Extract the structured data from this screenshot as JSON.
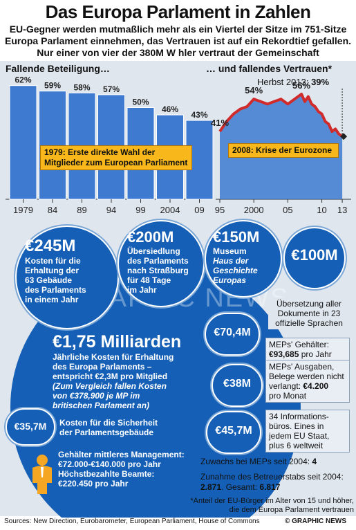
{
  "header": {
    "title": "Das Europa Parlament in Zahlen",
    "subtitle": "EU-Gegner werden mutmaßlich mehr als ein Viertel der Sitze im 751-Sitze Europa Parlament einnehmen, das Vertrauen ist auf ein Rekordtief gefallen. Nur einer von vier der 380M  W  hler vertraut der Gemeinschaft"
  },
  "chart_data": [
    {
      "type": "bar",
      "title": "Fallende Beteiligung…",
      "categories": [
        "1979",
        "84",
        "89",
        "94",
        "99",
        "2004",
        "09"
      ],
      "values": [
        62,
        59,
        58,
        57,
        50,
        46,
        43
      ],
      "value_labels": [
        "62%",
        "59%",
        "58%",
        "57%",
        "50%",
        "46%",
        "43%"
      ],
      "annotation": "1979: Erste direkte Wahl der Mitglieder zum European Parliament",
      "color": "#3d7ad0"
    },
    {
      "type": "line",
      "title": "… und fallendes Vertrauen*",
      "subtitle_label": "Herbst 2013:",
      "subtitle_value": "39%",
      "x_ticks": [
        "95",
        "2000",
        "05",
        "10",
        "13"
      ],
      "x": [
        1995,
        1996,
        1997,
        1998,
        1999,
        2000,
        2001,
        2002,
        2003,
        2004,
        2005,
        2006,
        2007,
        2007.5,
        2008,
        2008.5,
        2009,
        2009.5,
        2010,
        2010.5,
        2011,
        2011.5,
        2012,
        2012.5,
        2013
      ],
      "y": [
        41,
        45,
        48,
        50,
        51,
        54,
        53,
        52,
        53,
        54,
        52,
        54,
        56,
        53,
        55,
        52,
        51,
        49,
        48,
        45,
        44,
        41,
        42,
        40,
        39
      ],
      "value_labels": [
        {
          "x": 1995,
          "label": "41%"
        },
        {
          "x": 2000,
          "label": "54%"
        },
        {
          "x": 2007,
          "label": "56%"
        }
      ],
      "annotation": "2008: Krise der Eurozone",
      "color": "#d12a2a"
    }
  ],
  "circles": {
    "c245": {
      "value": "€245M",
      "text": [
        "Kosten für die",
        "Erhaltung der",
        "63 Gebäude",
        "des Parlaments",
        "in einem Jahr"
      ]
    },
    "c200": {
      "value": "€200M",
      "text": [
        "Übersiedlung",
        "des Parlaments",
        "nach Straßburg",
        "für 48 Tage",
        "im Jahr"
      ]
    },
    "c150": {
      "value": "€150M",
      "text_1": "Museum",
      "text_italic": [
        "Haus der",
        "Geschichte",
        "Europas"
      ]
    },
    "c100": {
      "value": "€100M",
      "text": [
        "Übersetzung aller",
        "Dokumente in 23",
        "offizielle Sprachen"
      ]
    },
    "c70": {
      "value": "€70,4M",
      "text_1": "MEPs' Gehälter:",
      "text_bold": "€93,685",
      "text_2": "pro Jahr"
    },
    "c38": {
      "value": "€38M",
      "text_1": "MEPs' Ausgaben,",
      "text_2": "Belege werden nicht",
      "text_3": "verlangt:",
      "text_bold": "€4.200",
      "text_4": "pro Monat"
    },
    "c45": {
      "value": "€45,7M",
      "text": [
        "34 Informations-",
        "büros. Eines in",
        "jedem EU Staat,",
        "plus 6 weltweit"
      ]
    },
    "c35": {
      "value": "€35,7M",
      "text": [
        "Kosten für die Sicherheit",
        "der Parlamentsgebäude"
      ]
    }
  },
  "main": {
    "value": "€1,75 Milliarden",
    "text": [
      "Jährliche Kosten für Erhaltung",
      "des Europa Parlaments –",
      "entspricht €2,3M pro Mitglied"
    ],
    "italic": [
      "(Zum Vergleich fallen Kosten",
      "von €378,900 je MP im",
      "britischen Parlament an)"
    ],
    "salary": [
      "Gehälter mittleres Management:",
      "€72.000-€140.000 pro Jahr",
      "Höchstbezahlte Beamte:",
      "€220.450 pro Jahr"
    ]
  },
  "stats": {
    "line1_label": "Zuwachs bei MEPs seit 2004:",
    "line1_value": "4",
    "line2_label": "Zunahme des Betreuerstabs seit 2004:",
    "line2_value1": "2.871",
    "line2_mid": ". Gesamt:",
    "line2_value2": "6.817"
  },
  "footnote": [
    "*Anteil der EU-Bürger im Alter von 15 und höher,",
    "die dem Europa Parlament vertrauen"
  ],
  "footer": {
    "sources": "Sources: New Direction, Eurobarometer, European Parliament, House of Commons",
    "credit": "© GRAPHIC NEWS"
  },
  "watermark": "GRAPHIC NEWS",
  "colors": {
    "bar": "#3d7ad0",
    "line": "#d12a2a",
    "circle": "#1560b6",
    "callout": "#f8b81b",
    "panel": "#dfe6ee"
  }
}
